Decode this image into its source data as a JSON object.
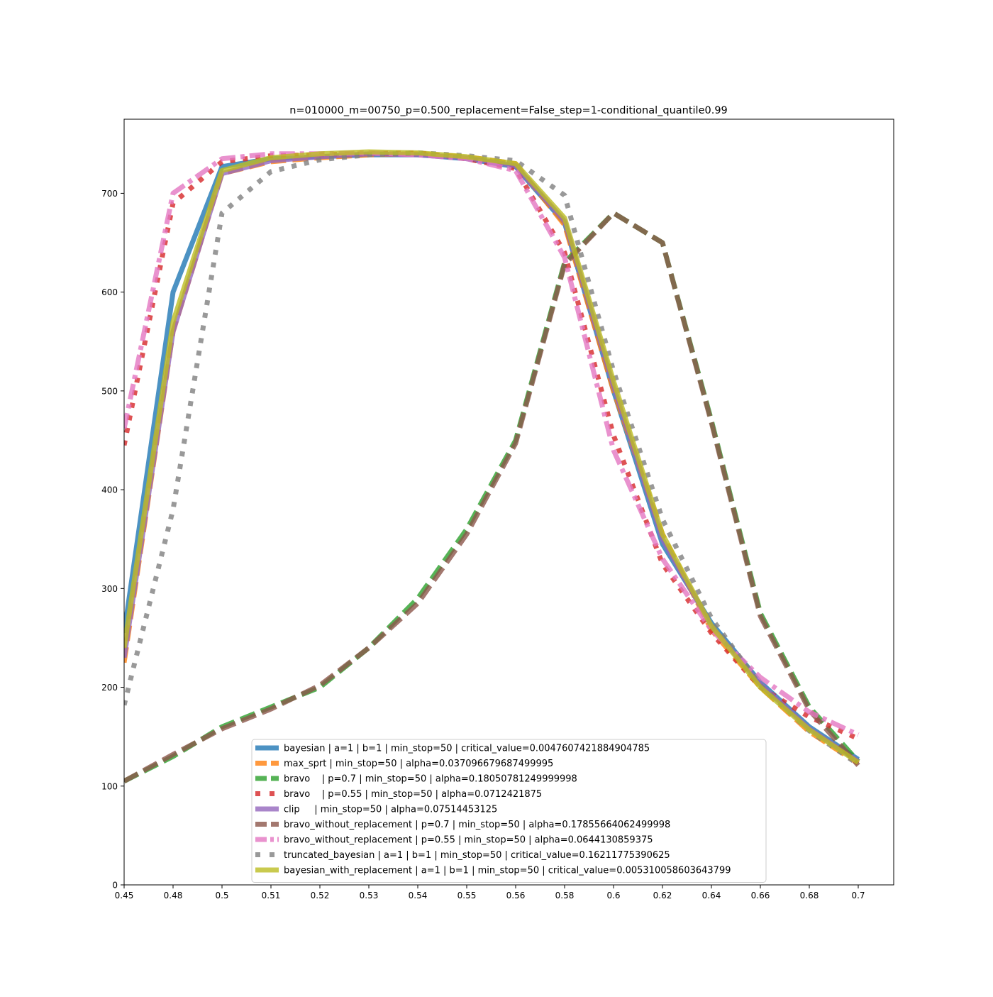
{
  "chart_data": {
    "type": "line",
    "title": "n=010000_m=00750_p=0.500_replacement=False_step=1-conditional_quantile0.99",
    "xlabel": "",
    "ylabel": "",
    "x_tick_labels": [
      "0.45",
      "0.48",
      "0.5",
      "0.51",
      "0.52",
      "0.53",
      "0.54",
      "0.55",
      "0.56",
      "0.58",
      "0.6",
      "0.62",
      "0.64",
      "0.66",
      "0.68",
      "0.7"
    ],
    "y_ticks": [
      0,
      100,
      200,
      300,
      400,
      500,
      600,
      700
    ],
    "ylim": [
      0,
      775
    ],
    "grid": false,
    "legend_placement": "lower center",
    "series": [
      {
        "name": "bayesian | a=1 | b=1 | min_stop=50 | critical_value=0.0047607421884904785",
        "color": "#1f77b4",
        "dash": "solid",
        "values": [
          255,
          600,
          727,
          735,
          737,
          739,
          739,
          735,
          727,
          670,
          500,
          345,
          265,
          205,
          160,
          127
        ]
      },
      {
        "name": "max_sprt | min_stop=50 | alpha=0.037096679687499995",
        "color": "#ff7f0e",
        "dash": "dashed",
        "values": [
          225,
          560,
          720,
          732,
          736,
          739,
          740,
          737,
          730,
          668,
          500,
          355,
          258,
          200,
          155,
          123
        ]
      },
      {
        "name": "bravo    | p=0.7 | min_stop=50 | alpha=0.18050781249999998",
        "color": "#2ca02c",
        "dash": "dashed",
        "values": [
          105,
          130,
          160,
          180,
          200,
          240,
          290,
          360,
          450,
          630,
          680,
          650,
          470,
          275,
          180,
          125
        ]
      },
      {
        "name": "bravo    | p=0.55 | min_stop=50 | alpha=0.0712421875",
        "color": "#d62728",
        "dash": "dotted",
        "values": [
          445,
          690,
          732,
          738,
          739,
          740,
          741,
          735,
          725,
          640,
          455,
          325,
          255,
          200,
          170,
          148
        ]
      },
      {
        "name": "clip     | min_stop=50 | alpha=0.07514453125",
        "color": "#9467bd",
        "dash": "solid",
        "values": [
          230,
          560,
          720,
          733,
          737,
          740,
          739,
          736,
          728,
          672,
          505,
          350,
          262,
          203,
          158,
          125
        ]
      },
      {
        "name": "bravo_without_replacement | p=0.7 | min_stop=50 | alpha=0.17855664062499998",
        "color": "#8c564b",
        "dash": "dashed",
        "values": [
          105,
          132,
          158,
          178,
          202,
          240,
          285,
          355,
          447,
          628,
          680,
          650,
          468,
          272,
          177,
          121
        ]
      },
      {
        "name": "bravo_without_replacement | p=0.55 | min_stop=50 | alpha=0.0644130859375",
        "color": "#e377c2",
        "dash": "dashdot",
        "values": [
          462,
          700,
          735,
          740,
          740,
          741,
          739,
          735,
          723,
          635,
          440,
          330,
          258,
          210,
          175,
          152
        ]
      },
      {
        "name": "truncated_bayesian | a=1 | b=1 | min_stop=50 | critical_value=0.16211775390625",
        "color": "#7f7f7f",
        "dash": "dotted",
        "values": [
          182,
          380,
          680,
          722,
          734,
          739,
          741,
          738,
          733,
          698,
          520,
          370,
          270,
          202,
          156,
          122
        ]
      },
      {
        "name": "bayesian_with_replacement | a=1 | b=1 | min_stop=50 | critical_value=0.005310058603643799",
        "color": "#bcbd22",
        "dash": "solid",
        "values": [
          240,
          570,
          723,
          736,
          740,
          742,
          741,
          737,
          730,
          675,
          510,
          355,
          262,
          200,
          157,
          124
        ]
      }
    ]
  }
}
